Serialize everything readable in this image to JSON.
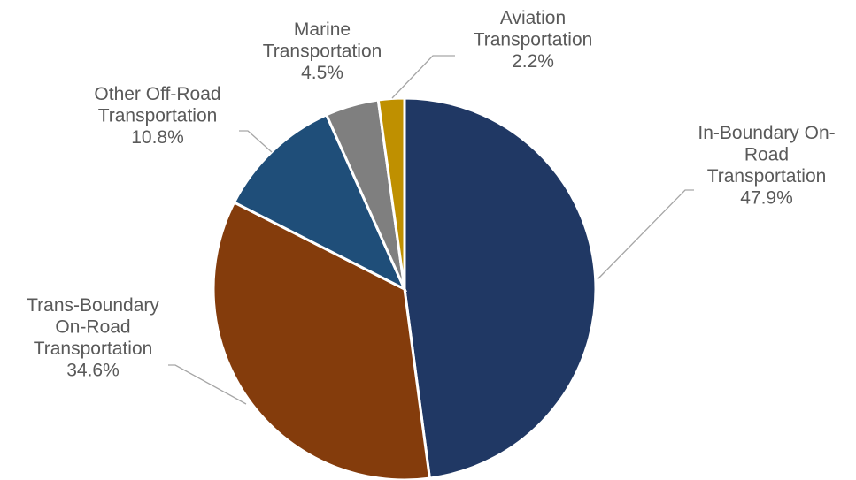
{
  "chart_data": {
    "type": "pie",
    "title": "",
    "slices": [
      {
        "name": "In-Boundary On-Road Transportation",
        "label_lines": [
          "In-Boundary On-",
          "Road",
          "Transportation"
        ],
        "value": 47.9,
        "percent_label": "47.9%",
        "color": "#203864"
      },
      {
        "name": "Trans-Boundary On-Road Transportation",
        "label_lines": [
          "Trans-Boundary",
          "On-Road",
          "Transportation"
        ],
        "value": 34.6,
        "percent_label": "34.6%",
        "color": "#843c0c"
      },
      {
        "name": "Other Off-Road Transportation",
        "label_lines": [
          "Other Off-Road",
          "Transportation"
        ],
        "value": 10.8,
        "percent_label": "10.8%",
        "color": "#1f4e79"
      },
      {
        "name": "Marine Transportation",
        "label_lines": [
          "Marine",
          "Transportation"
        ],
        "value": 4.5,
        "percent_label": "4.5%",
        "color": "#7f7f7f"
      },
      {
        "name": "Aviation Transportation",
        "label_lines": [
          "Aviation",
          "Transportation"
        ],
        "value": 2.2,
        "percent_label": "2.2%",
        "color": "#bf9000"
      }
    ],
    "start_angle_deg": 0,
    "direction": "clockwise",
    "legend": "none",
    "data_labels": "outside-with-leader-lines"
  }
}
